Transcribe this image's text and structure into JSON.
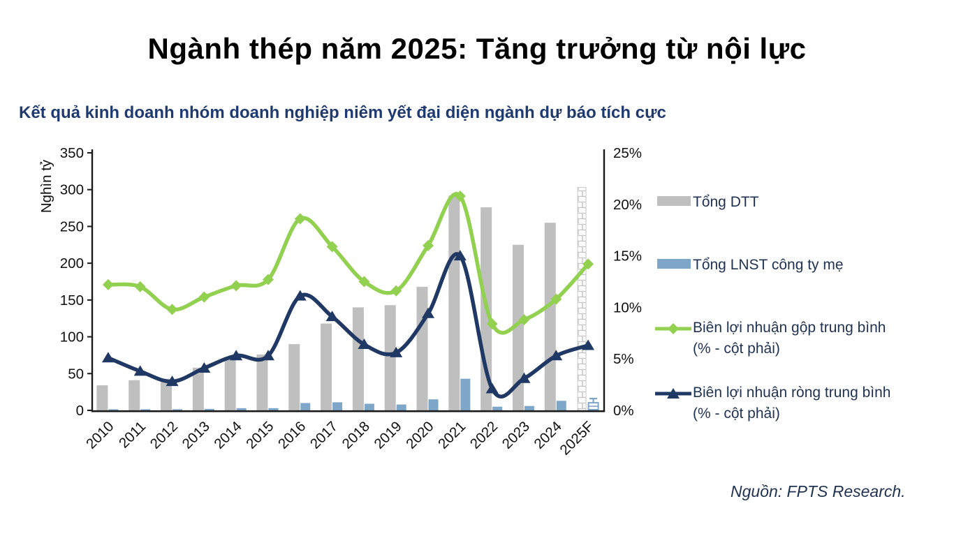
{
  "page": {
    "title": "Ngành thép năm 2025: Tăng trưởng từ nội lực",
    "chart_title": "Kết quả kinh doanh nhóm doanh nghiệp niêm yết đại diện ngành dự báo tích cực",
    "source": "Nguồn: FPTS Research."
  },
  "colors": {
    "bar_gray": "#BFBFBF",
    "bar_blue": "#7EA6C8",
    "line_green": "#92D050",
    "line_navy": "#1F3864",
    "axis_black": "#1a1a1a",
    "text_navy": "#1F3250",
    "forecast_hatch": "#C9C9C9"
  },
  "legend": {
    "items": [
      {
        "label": "Tổng DTT",
        "type": "bar",
        "color": "#BFBFBF"
      },
      {
        "label": "Tổng LNST công ty mẹ",
        "type": "bar",
        "color": "#7EA6C8"
      },
      {
        "label": "Biên lợi nhuận gộp trung bình",
        "label2": "(% - cột phải)",
        "type": "line-diamond",
        "color": "#92D050"
      },
      {
        "label": "Biên lợi nhuận ròng trung bình",
        "label2": "(% - cột phải)",
        "type": "line-triangle",
        "color": "#1F3864"
      }
    ]
  },
  "chart_data": {
    "type": "bar",
    "subtype": "combo-bar-line-dual-axis",
    "categories": [
      "2010",
      "2011",
      "2012",
      "2013",
      "2014",
      "2015",
      "2016",
      "2017",
      "2018",
      "2019",
      "2020",
      "2021",
      "2022",
      "2023",
      "2024",
      "2025F"
    ],
    "forecast_category": "2025F",
    "left_axis": {
      "label": "Nghìn tỷ",
      "ticks": [
        350,
        300,
        250,
        200,
        150,
        100,
        50,
        0
      ],
      "range": [
        0,
        350
      ]
    },
    "right_axis": {
      "ticks": [
        "25%",
        "20%",
        "15%",
        "10%",
        "5%",
        "0%"
      ],
      "tick_values": [
        25,
        20,
        15,
        10,
        5,
        0
      ],
      "range": [
        0,
        25
      ]
    },
    "grid": false,
    "legend_position": "right",
    "series": [
      {
        "name": "Tổng DTT",
        "type": "bar",
        "axis": "left",
        "color": "#BFBFBF",
        "values": [
          34,
          41,
          43,
          58,
          71,
          76,
          90,
          118,
          140,
          143,
          168,
          292,
          276,
          225,
          255,
          303
        ]
      },
      {
        "name": "Tổng LNST công ty mẹ",
        "type": "bar",
        "axis": "left",
        "color": "#7EA6C8",
        "values": [
          1,
          1,
          1,
          2,
          3,
          3,
          10,
          11,
          9,
          8,
          15,
          43,
          5,
          6,
          13,
          16
        ]
      },
      {
        "name": "Biên lợi nhuận gộp trung bình (% - cột phải)",
        "type": "line",
        "marker": "diamond",
        "axis": "right",
        "color": "#92D050",
        "values": [
          12.2,
          12.0,
          9.8,
          11.0,
          12.1,
          12.7,
          18.6,
          15.9,
          12.5,
          11.6,
          16.0,
          20.8,
          8.4,
          8.8,
          10.8,
          14.2
        ]
      },
      {
        "name": "Biên lợi nhuận ròng trung bình (% - cột phải)",
        "type": "line",
        "marker": "triangle",
        "axis": "right",
        "color": "#1F3864",
        "values": [
          5.1,
          3.8,
          2.8,
          4.1,
          5.3,
          5.3,
          11.1,
          9.1,
          6.4,
          5.6,
          9.4,
          15.0,
          2.1,
          3.1,
          5.3,
          6.3
        ]
      }
    ]
  }
}
